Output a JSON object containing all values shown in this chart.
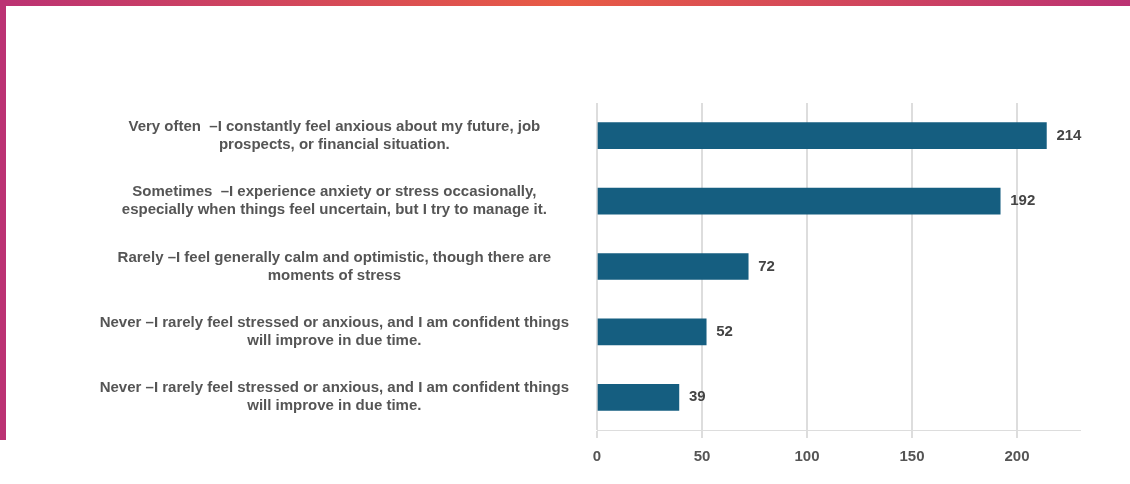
{
  "chart_data": {
    "type": "bar",
    "orientation": "horizontal",
    "categories": [
      "Very often  –I constantly feel anxious about my future, job prospects, or financial situation.",
      "Sometimes  –I experience anxiety or stress occasionally, especially when things feel uncertain, but I try to manage it.",
      "Rarely –I feel generally calm and optimistic, though there are moments of stress",
      "Never –I rarely feel stressed or anxious, and I am confident things will improve in due time.",
      "Never –I rarely feel stressed or anxious, and I am confident things will improve in due time."
    ],
    "values": [
      214,
      192,
      72,
      52,
      39
    ],
    "color": "#155e80",
    "xlim": [
      0,
      230
    ],
    "xticks": [
      0,
      50,
      100,
      150,
      200
    ],
    "grid": "x",
    "data_labels": true,
    "legend": false
  }
}
